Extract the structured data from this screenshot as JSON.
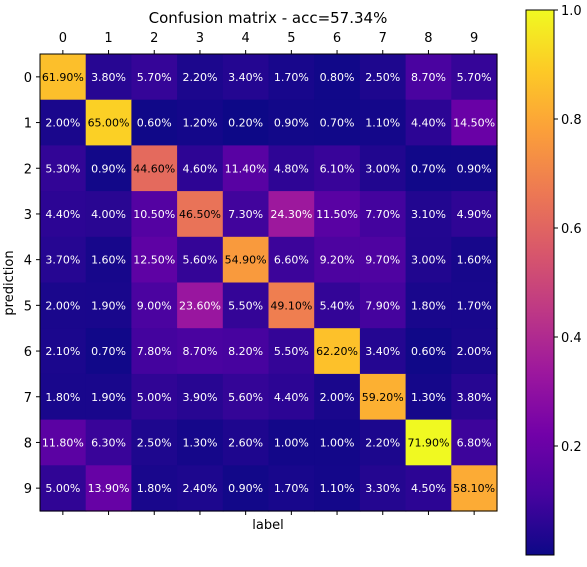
{
  "chart_data": {
    "type": "heatmap",
    "title": "Confusion matrix - acc=57.34%",
    "xlabel": "label",
    "ylabel": "prediction",
    "x_ticks": [
      "0",
      "1",
      "2",
      "3",
      "4",
      "5",
      "6",
      "7",
      "8",
      "9"
    ],
    "y_ticks": [
      "0",
      "1",
      "2",
      "3",
      "4",
      "5",
      "6",
      "7",
      "8",
      "9"
    ],
    "colormap": "plasma",
    "colorbar": {
      "range": [
        0.0,
        1.0
      ],
      "ticks": [
        0.2,
        0.4,
        0.6,
        0.8,
        1.0
      ],
      "tick_labels": [
        "0.2",
        "0.4",
        "0.6",
        "0.8",
        "1.0"
      ]
    },
    "values": [
      [
        61.9,
        3.8,
        5.7,
        2.2,
        3.4,
        1.7,
        0.8,
        2.5,
        8.7,
        5.7
      ],
      [
        2.0,
        65.0,
        0.6,
        1.2,
        0.2,
        0.9,
        0.7,
        1.1,
        4.4,
        14.5
      ],
      [
        5.3,
        0.9,
        44.6,
        4.6,
        11.4,
        4.8,
        6.1,
        3.0,
        0.7,
        0.9
      ],
      [
        4.4,
        4.0,
        10.5,
        46.5,
        7.3,
        24.3,
        11.5,
        7.7,
        3.1,
        4.9
      ],
      [
        3.7,
        1.6,
        12.5,
        5.6,
        54.9,
        6.6,
        9.2,
        9.7,
        3.0,
        1.6
      ],
      [
        2.0,
        1.9,
        9.0,
        23.6,
        5.5,
        49.1,
        5.4,
        7.9,
        1.8,
        1.7
      ],
      [
        2.1,
        0.7,
        7.8,
        8.7,
        8.2,
        5.5,
        62.2,
        3.4,
        0.6,
        2.0
      ],
      [
        1.8,
        1.9,
        5.0,
        3.9,
        5.6,
        4.4,
        2.0,
        59.2,
        1.3,
        3.8
      ],
      [
        11.8,
        6.3,
        2.5,
        1.3,
        2.6,
        1.0,
        1.0,
        2.2,
        71.9,
        6.8
      ],
      [
        5.0,
        13.9,
        1.8,
        2.4,
        0.9,
        1.7,
        1.1,
        3.3,
        4.5,
        58.1
      ]
    ],
    "cell_labels": [
      [
        "61.90%",
        "3.80%",
        "5.70%",
        "2.20%",
        "3.40%",
        "1.70%",
        "0.80%",
        "2.50%",
        "8.70%",
        "5.70%"
      ],
      [
        "2.00%",
        "65.00%",
        "0.60%",
        "1.20%",
        "0.20%",
        "0.90%",
        "0.70%",
        "1.10%",
        "4.40%",
        "14.50%"
      ],
      [
        "5.30%",
        "0.90%",
        "44.60%",
        "4.60%",
        "11.40%",
        "4.80%",
        "6.10%",
        "3.00%",
        "0.70%",
        "0.90%"
      ],
      [
        "4.40%",
        "4.00%",
        "10.50%",
        "46.50%",
        "7.30%",
        "24.30%",
        "11.50%",
        "7.70%",
        "3.10%",
        "4.90%"
      ],
      [
        "3.70%",
        "1.60%",
        "12.50%",
        "5.60%",
        "54.90%",
        "6.60%",
        "9.20%",
        "9.70%",
        "3.00%",
        "1.60%"
      ],
      [
        "2.00%",
        "1.90%",
        "9.00%",
        "23.60%",
        "5.50%",
        "49.10%",
        "5.40%",
        "7.90%",
        "1.80%",
        "1.70%"
      ],
      [
        "2.10%",
        "0.70%",
        "7.80%",
        "8.70%",
        "8.20%",
        "5.50%",
        "62.20%",
        "3.40%",
        "0.60%",
        "2.00%"
      ],
      [
        "1.80%",
        "1.90%",
        "5.00%",
        "3.90%",
        "5.60%",
        "4.40%",
        "2.00%",
        "59.20%",
        "1.30%",
        "3.80%"
      ],
      [
        "11.80%",
        "6.30%",
        "2.50%",
        "1.30%",
        "2.60%",
        "1.00%",
        "1.00%",
        "2.20%",
        "71.90%",
        "6.80%"
      ],
      [
        "5.00%",
        "13.90%",
        "1.80%",
        "2.40%",
        "0.90%",
        "1.70%",
        "1.10%",
        "3.30%",
        "4.50%",
        "58.10%"
      ]
    ]
  }
}
